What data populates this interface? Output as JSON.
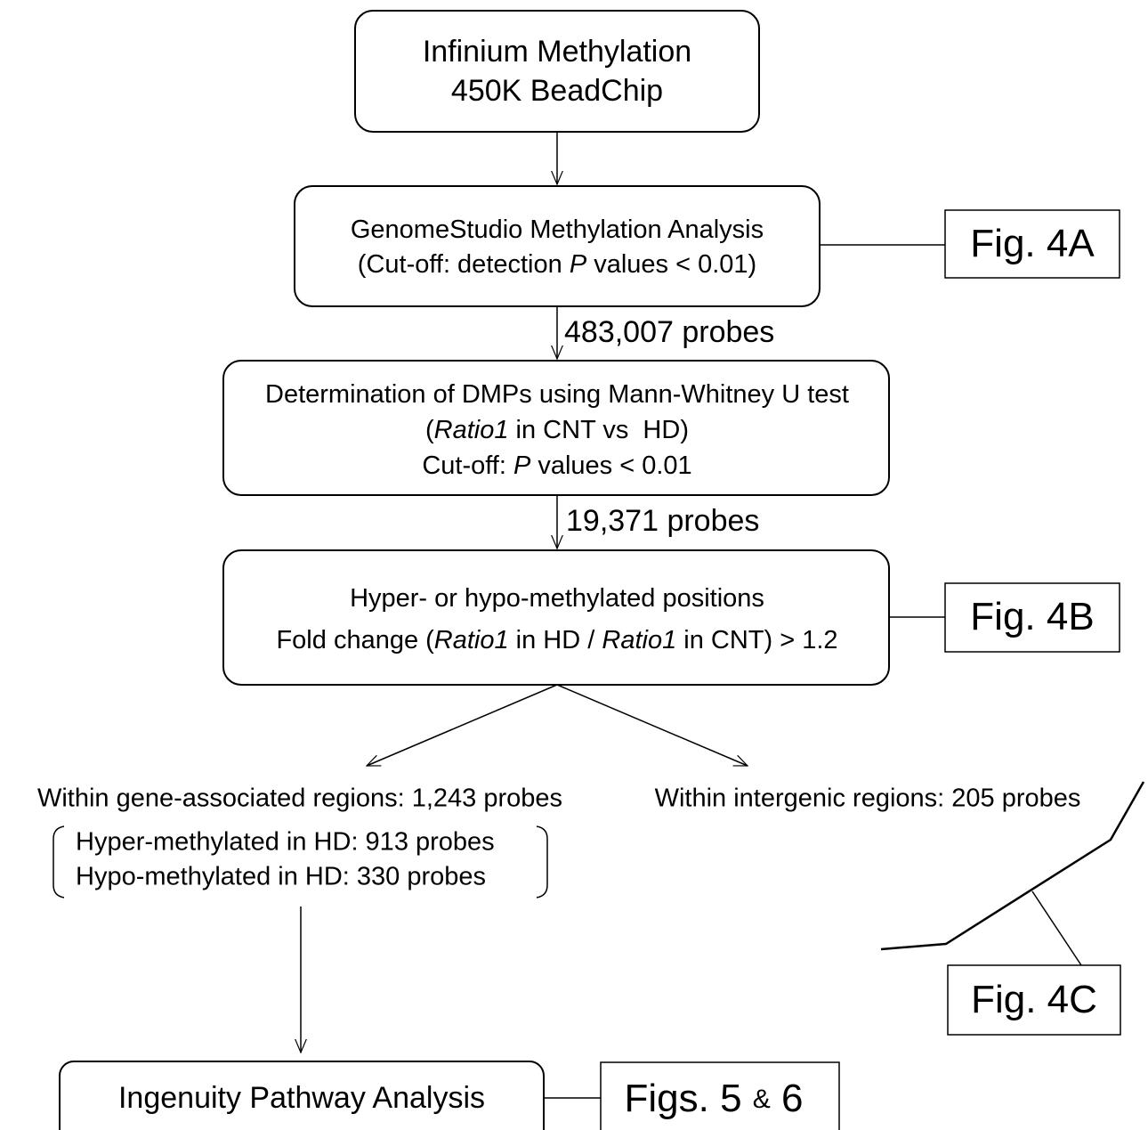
{
  "nodes": [
    {
      "lines": [
        [
          "Infinium Methylation"
        ],
        [
          "450K BeadChip"
        ]
      ]
    },
    {
      "lines": [
        [
          "GenomeStudio Methylation Analysis"
        ],
        [
          "(Cut-off: detection ",
          "P",
          " values < 0.01)"
        ]
      ]
    },
    {
      "lines": [
        [
          "Determination of DMPs using Mann-Whitney U test"
        ],
        [
          "(",
          "Ratio1",
          " in CNT vs  HD)"
        ],
        [
          "Cut-off: ",
          "P",
          " values < 0.01"
        ]
      ]
    },
    {
      "lines": [
        [
          "Hyper- or hypo-methylated positions"
        ],
        [
          "Fold change (",
          "Ratio1",
          " in HD / ",
          "Ratio1",
          " in CNT) > 1.2"
        ]
      ]
    },
    {
      "lines": [
        [
          "Ingenuity Pathway Analysis"
        ]
      ]
    }
  ],
  "edge_labels": [
    "483,007 probes",
    "19,371 probes"
  ],
  "branches": [
    {
      "title": "Within gene-associated regions: 1,243 probes",
      "items": [
        "Hyper-methylated in HD: 913 probes",
        "Hypo-methylated in HD: 330 probes"
      ]
    },
    {
      "title": "Within intergenic regions: 205 probes"
    }
  ],
  "figures": [
    [
      "Fig. 4A"
    ],
    [
      "Fig. 4B"
    ],
    [
      "Fig. 4C"
    ],
    [
      "Figs. 5 ",
      "&",
      " 6"
    ]
  ]
}
